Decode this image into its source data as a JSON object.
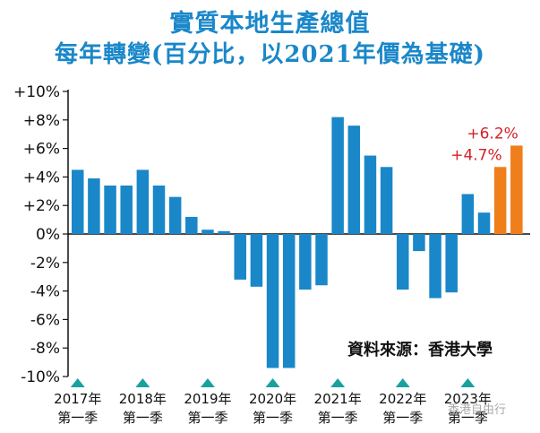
{
  "chart_data": {
    "type": "bar",
    "title": "實質本地生產總值",
    "subtitle": "每年轉變(百分比，以2021年價為基礎)",
    "source": "資料來源：香港大學",
    "watermark": "香港自由行",
    "ylim": [
      -10,
      10
    ],
    "y_ticks": [
      10,
      8,
      6,
      4,
      2,
      0,
      -2,
      -4,
      -6,
      -8,
      -10
    ],
    "y_tick_labels": [
      "+10%",
      "+8%",
      "+6%",
      "+4%",
      "+2%",
      "0%",
      "-2%",
      "-4%",
      "-6%",
      "-8%",
      "-10%"
    ],
    "year_labels": [
      {
        "year": "2017年",
        "quarter": "第一季",
        "index": 0
      },
      {
        "year": "2018年",
        "quarter": "第一季",
        "index": 4
      },
      {
        "year": "2019年",
        "quarter": "第一季",
        "index": 8
      },
      {
        "year": "2020年",
        "quarter": "第一季",
        "index": 12
      },
      {
        "year": "2021年",
        "quarter": "第一季",
        "index": 16
      },
      {
        "year": "2022年",
        "quarter": "第一季",
        "index": 20
      },
      {
        "year": "2023年",
        "quarter": "第一季",
        "index": 24
      }
    ],
    "values": [
      4.5,
      3.9,
      3.4,
      3.4,
      4.5,
      3.4,
      2.6,
      1.2,
      0.3,
      0.2,
      -3.2,
      -3.7,
      -9.4,
      -9.4,
      -3.9,
      -3.6,
      8.2,
      7.6,
      5.5,
      4.7,
      -3.9,
      -1.2,
      -4.5,
      -4.1,
      2.8,
      1.5,
      4.7,
      6.2
    ],
    "forecast_start_index": 26,
    "data_labels": [
      {
        "index": 26,
        "text": "+4.7%"
      },
      {
        "index": 27,
        "text": "+6.2%"
      }
    ],
    "colors": {
      "actual": "#1a87c9",
      "forecast": "#f07e1b",
      "label": "#d42027",
      "marker": "#1aa0a0",
      "axis": "#111111"
    }
  }
}
